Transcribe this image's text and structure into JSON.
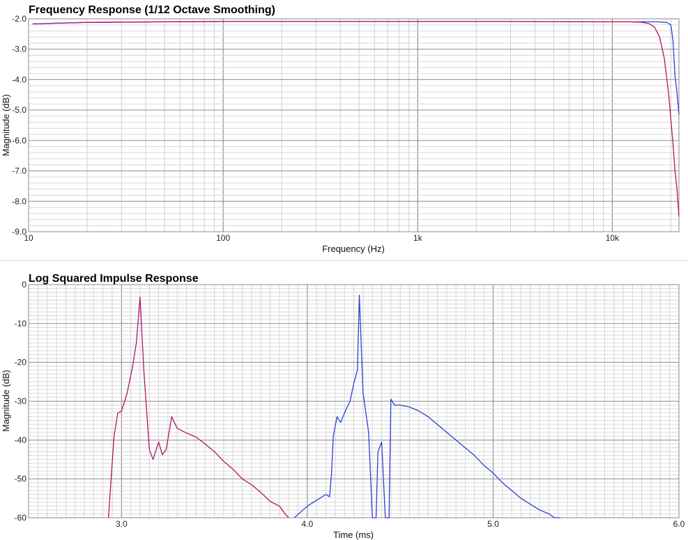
{
  "chart_data": [
    {
      "type": "line",
      "title": "Frequency Response (1/12 Octave Smoothing)",
      "xlabel": "Frequency (Hz)",
      "ylabel": "Magnitude (dB)",
      "xscale": "log",
      "xlim": [
        10,
        22000
      ],
      "ylim": [
        -9.0,
        -2.0
      ],
      "grid": true,
      "x_ticks": [
        10,
        100,
        1000,
        10000
      ],
      "x_tick_labels": [
        "10",
        "100",
        "1k",
        "10k"
      ],
      "y_ticks": [
        -2,
        -3,
        -4,
        -5,
        -6,
        -7,
        -8,
        -9
      ],
      "y_tick_labels": [
        "-2.0",
        "-3.0",
        "-4.0",
        "-5.0",
        "-6.0",
        "-7.0",
        "-8.0",
        "-9.0"
      ],
      "colors": [
        "#2b3fd4",
        "#b1136b"
      ],
      "series": [
        {
          "points": [
            [
              10.5,
              -2.17
            ],
            [
              15,
              -2.14
            ],
            [
              20,
              -2.12
            ],
            [
              30,
              -2.11
            ],
            [
              50,
              -2.1
            ],
            [
              100,
              -2.09
            ],
            [
              300,
              -2.09
            ],
            [
              1000,
              -2.09
            ],
            [
              3000,
              -2.09
            ],
            [
              8000,
              -2.1
            ],
            [
              14000,
              -2.1
            ],
            [
              17000,
              -2.1
            ],
            [
              19000,
              -2.12
            ],
            [
              20000,
              -2.2
            ],
            [
              20500,
              -2.7
            ],
            [
              21000,
              -3.9
            ],
            [
              21500,
              -4.4
            ],
            [
              22000,
              -5.15
            ]
          ]
        },
        {
          "points": [
            [
              10.5,
              -2.17
            ],
            [
              15,
              -2.14
            ],
            [
              20,
              -2.12
            ],
            [
              30,
              -2.11
            ],
            [
              50,
              -2.1
            ],
            [
              100,
              -2.09
            ],
            [
              300,
              -2.09
            ],
            [
              1000,
              -2.09
            ],
            [
              3000,
              -2.09
            ],
            [
              8000,
              -2.1
            ],
            [
              12000,
              -2.1
            ],
            [
              14000,
              -2.11
            ],
            [
              15500,
              -2.16
            ],
            [
              16500,
              -2.28
            ],
            [
              17500,
              -2.6
            ],
            [
              18500,
              -3.3
            ],
            [
              19500,
              -4.5
            ],
            [
              20500,
              -6.1
            ],
            [
              21000,
              -7.0
            ],
            [
              21500,
              -7.6
            ],
            [
              22000,
              -8.5
            ]
          ]
        }
      ]
    },
    {
      "type": "line",
      "title": "Log Squared Impulse Response",
      "xlabel": "Time (ms)",
      "ylabel": "Magnitude (dB)",
      "xlim": [
        2.5,
        6.0
      ],
      "ylim": [
        -60,
        0
      ],
      "grid": true,
      "x_ticks": [
        3.0,
        4.0,
        5.0,
        6.0
      ],
      "x_tick_labels": [
        "3.0",
        "4.0",
        "5.0",
        "6.0"
      ],
      "y_ticks": [
        0,
        -10,
        -20,
        -30,
        -40,
        -50,
        -60
      ],
      "y_tick_labels": [
        "0",
        "-10",
        "-20",
        "-30",
        "-40",
        "-50",
        "-60"
      ],
      "colors": [
        "#b1136b",
        "#2b3fd4"
      ],
      "series": [
        {
          "points": [
            [
              2.93,
              -60
            ],
            [
              2.96,
              -39
            ],
            [
              2.98,
              -33
            ],
            [
              3.0,
              -32.6
            ],
            [
              3.03,
              -28
            ],
            [
              3.06,
              -21
            ],
            [
              3.08,
              -15
            ],
            [
              3.1,
              -3.2
            ],
            [
              3.12,
              -22
            ],
            [
              3.15,
              -42.5
            ],
            [
              3.17,
              -45
            ],
            [
              3.2,
              -40.5
            ],
            [
              3.22,
              -43.8
            ],
            [
              3.24,
              -42.5
            ],
            [
              3.27,
              -34
            ],
            [
              3.3,
              -37
            ],
            [
              3.35,
              -38.2
            ],
            [
              3.4,
              -39.2
            ],
            [
              3.45,
              -41
            ],
            [
              3.5,
              -43
            ],
            [
              3.55,
              -45.5
            ],
            [
              3.6,
              -47.5
            ],
            [
              3.65,
              -50
            ],
            [
              3.7,
              -51.5
            ],
            [
              3.75,
              -53.5
            ],
            [
              3.8,
              -55.8
            ],
            [
              3.85,
              -57
            ],
            [
              3.88,
              -59
            ],
            [
              3.9,
              -60
            ]
          ]
        },
        {
          "points": [
            [
              3.93,
              -60
            ],
            [
              4.0,
              -57
            ],
            [
              4.05,
              -55.5
            ],
            [
              4.1,
              -54
            ],
            [
              4.12,
              -54.6
            ],
            [
              4.13,
              -49
            ],
            [
              4.14,
              -39
            ],
            [
              4.16,
              -34
            ],
            [
              4.18,
              -35.5
            ],
            [
              4.2,
              -33
            ],
            [
              4.23,
              -30
            ],
            [
              4.25,
              -25.5
            ],
            [
              4.27,
              -22
            ],
            [
              4.28,
              -2.7
            ],
            [
              4.3,
              -27.8
            ],
            [
              4.33,
              -38
            ],
            [
              4.35,
              -60
            ],
            [
              4.37,
              -60
            ],
            [
              4.38,
              -43
            ],
            [
              4.4,
              -40.5
            ],
            [
              4.42,
              -60
            ],
            [
              4.44,
              -60
            ],
            [
              4.45,
              -29.5
            ],
            [
              4.47,
              -31
            ],
            [
              4.5,
              -31
            ],
            [
              4.55,
              -31.5
            ],
            [
              4.6,
              -32.5
            ],
            [
              4.65,
              -34
            ],
            [
              4.7,
              -36
            ],
            [
              4.75,
              -38
            ],
            [
              4.8,
              -40
            ],
            [
              4.85,
              -42
            ],
            [
              4.9,
              -44
            ],
            [
              4.95,
              -46.5
            ],
            [
              5.0,
              -48.5
            ],
            [
              5.05,
              -51
            ],
            [
              5.1,
              -53
            ],
            [
              5.15,
              -55
            ],
            [
              5.2,
              -56.5
            ],
            [
              5.25,
              -58
            ],
            [
              5.3,
              -59
            ],
            [
              5.33,
              -60
            ],
            [
              5.36,
              -60
            ]
          ]
        }
      ]
    }
  ]
}
